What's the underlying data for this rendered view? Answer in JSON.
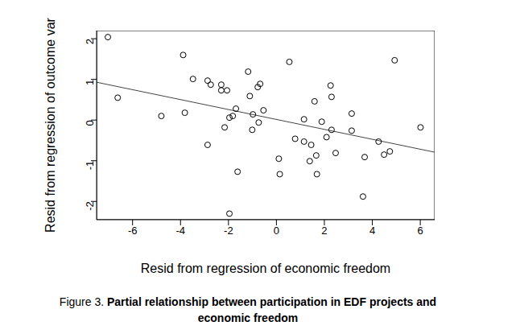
{
  "chart_data": {
    "type": "scatter",
    "title": "Partial relationship between participation in EDF projects and economic freedom",
    "caption_label": "Figure 3.",
    "x_label": "Resid from regression of economic freedom",
    "y_label": "Resid from regression of outcome var",
    "x": [
      -7.03,
      -6.62,
      -4.8,
      -3.89,
      -3.82,
      -3.48,
      -2.87,
      -2.74,
      -2.87,
      -2.3,
      -2.3,
      -2.06,
      -2.16,
      -1.96,
      -1.82,
      -1.69,
      -1.96,
      -1.62,
      -1.18,
      -1.11,
      -1.01,
      -0.98,
      -0.78,
      -0.68,
      -0.74,
      -0.54,
      0.1,
      0.14,
      0.54,
      0.78,
      1.15,
      1.15,
      1.39,
      1.45,
      1.59,
      1.66,
      1.69,
      1.89,
      2.09,
      2.26,
      2.3,
      2.3,
      2.47,
      3.14,
      3.14,
      3.61,
      3.68,
      4.26,
      4.49,
      4.73,
      4.93,
      6.01
    ],
    "values": [
      2.04,
      0.55,
      0.1,
      1.6,
      0.18,
      1.01,
      0.97,
      0.87,
      -0.61,
      0.87,
      0.73,
      0.73,
      -0.18,
      0.06,
      0.1,
      0.28,
      -2.3,
      -1.27,
      1.19,
      0.59,
      -0.24,
      0.14,
      0.81,
      0.89,
      -0.06,
      0.24,
      -0.95,
      -1.33,
      1.43,
      -0.46,
      0.02,
      -0.53,
      -1.01,
      -0.61,
      0.46,
      -0.87,
      -1.33,
      -0.04,
      -0.42,
      0.85,
      0.57,
      -0.24,
      -0.81,
      0.16,
      -0.26,
      -1.88,
      -0.91,
      -0.53,
      -0.85,
      -0.77,
      1.47,
      -0.18
    ],
    "fit_line": {
      "x": [
        -7.5,
        6.6
      ],
      "y": [
        0.93,
        -0.79
      ]
    },
    "color": "#000000",
    "marker": "open_circle",
    "xlim": [
      -7.5,
      6.6
    ],
    "ylim": [
      -2.45,
      2.2
    ],
    "xticks": [
      -6,
      -4,
      -2,
      0,
      2,
      4,
      6
    ],
    "yticks": [
      -2,
      -1,
      0,
      1,
      2
    ],
    "grid": false
  }
}
